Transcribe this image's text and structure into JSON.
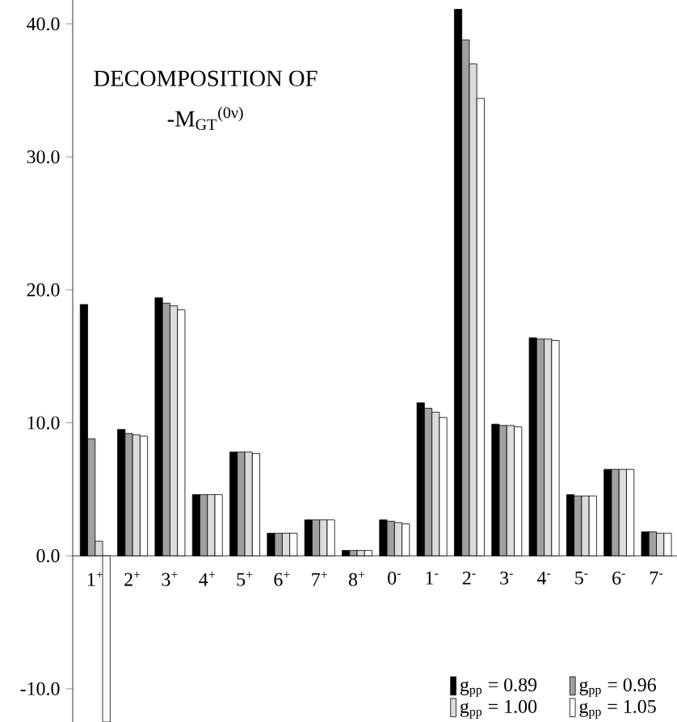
{
  "chart_data": {
    "type": "bar",
    "title": "DECOMPOSITION OF",
    "subtitle": "-M$_{GT}$$^{(0ν)}$",
    "categories": [
      "1$^{+}$",
      "2$^{+}$",
      "3$^{+}$",
      "4$^{+}$",
      "5$^{+}$",
      "6$^{+}$",
      "7$^{+}$",
      "8$^{+}$",
      "0$^{-}$",
      "1$^{-}$",
      "2$^{-}$",
      "3$^{-}$",
      "4$^{-}$",
      "5$^{-}$",
      "6$^{-}$",
      "7$^{-}$"
    ],
    "series": [
      {
        "name": "g$_{pp}$ = 0.89",
        "color": "#000000",
        "values": [
          18.9,
          9.5,
          19.4,
          4.6,
          7.8,
          1.7,
          2.7,
          0.4,
          2.7,
          11.5,
          41.1,
          9.9,
          16.4,
          4.6,
          6.5,
          1.8
        ]
      },
      {
        "name": "g$_{pp}$ = 0.96",
        "color": "#a0a0a0",
        "values": [
          8.8,
          9.2,
          19.0,
          4.6,
          7.8,
          1.7,
          2.7,
          0.4,
          2.6,
          11.1,
          38.8,
          9.8,
          16.3,
          4.5,
          6.5,
          1.8
        ]
      },
      {
        "name": "g$_{pp}$ = 1.00",
        "color": "#dcdcdc",
        "values": [
          1.1,
          9.1,
          18.8,
          4.6,
          7.8,
          1.7,
          2.7,
          0.4,
          2.5,
          10.8,
          37.0,
          9.8,
          16.3,
          4.5,
          6.5,
          1.7
        ]
      },
      {
        "name": "g$_{pp}$ = 1.05",
        "color": "#ffffff",
        "values": [
          -12.5,
          9.0,
          18.5,
          4.6,
          7.7,
          1.7,
          2.7,
          0.4,
          2.4,
          10.4,
          34.4,
          9.7,
          16.2,
          4.5,
          6.5,
          1.7
        ]
      }
    ],
    "ylim": [
      -12.5,
      41.8
    ],
    "yticks": [
      {
        "value": -10,
        "label": "-10.0"
      },
      {
        "value": 0,
        "label": "0.0"
      },
      {
        "value": 10,
        "label": "10.0"
      },
      {
        "value": 20,
        "label": "20.0"
      },
      {
        "value": 30,
        "label": "30.0"
      },
      {
        "value": 40,
        "label": "40.0"
      }
    ],
    "legend": "bottom right"
  }
}
